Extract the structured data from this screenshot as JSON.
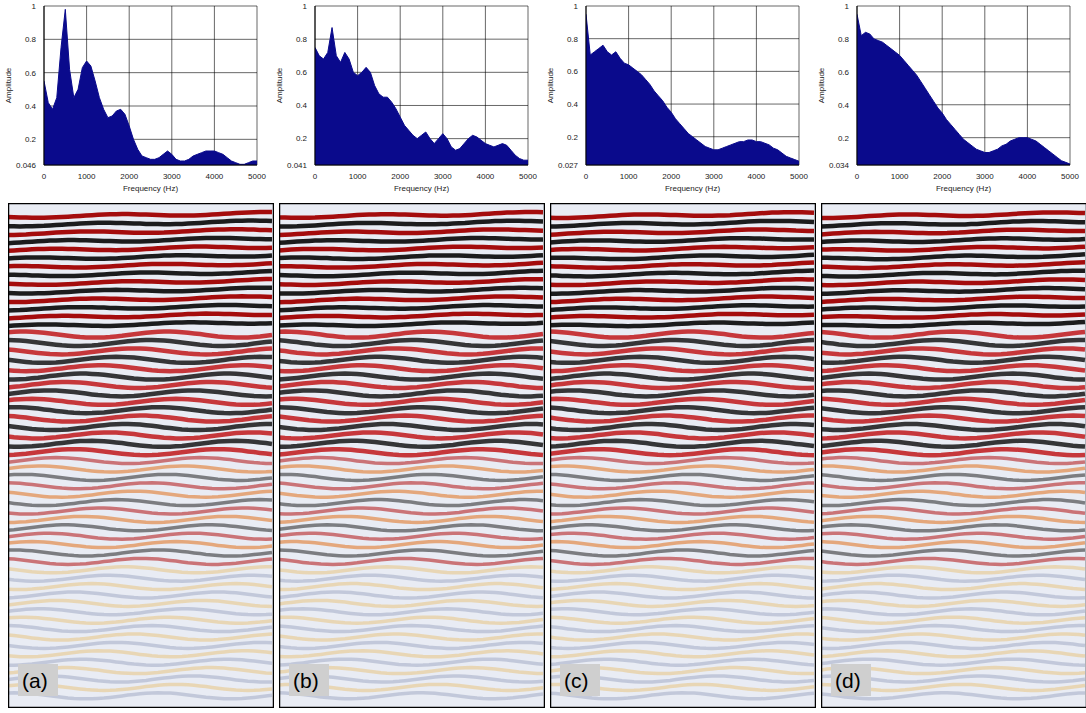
{
  "chart_data": [
    {
      "type": "area",
      "x_label": "Frequency (Hz)",
      "y_label": "Amplitude",
      "color": "#0a0a8c",
      "grid": true,
      "xlim": [
        0,
        5000
      ],
      "xticks": [
        0,
        1000,
        2000,
        3000,
        4000,
        5000
      ],
      "ylim": [
        0.046,
        1
      ],
      "yticks": [
        0.046,
        0.2,
        0.4,
        0.6,
        0.8,
        1
      ],
      "x": [
        0,
        100,
        200,
        300,
        400,
        500,
        600,
        700,
        800,
        900,
        1000,
        1100,
        1200,
        1300,
        1400,
        1500,
        1600,
        1700,
        1800,
        1900,
        2000,
        2100,
        2200,
        2300,
        2400,
        2500,
        2600,
        2700,
        2800,
        2900,
        3000,
        3100,
        3200,
        3300,
        3400,
        3500,
        3600,
        3700,
        3800,
        3900,
        4000,
        4100,
        4200,
        4300,
        4400,
        4500,
        4600,
        4700,
        4800,
        4900,
        5000
      ],
      "values": [
        0.55,
        0.42,
        0.38,
        0.45,
        0.75,
        0.98,
        0.62,
        0.45,
        0.5,
        0.63,
        0.67,
        0.64,
        0.55,
        0.45,
        0.38,
        0.33,
        0.34,
        0.37,
        0.38,
        0.35,
        0.28,
        0.2,
        0.14,
        0.1,
        0.09,
        0.08,
        0.08,
        0.09,
        0.11,
        0.13,
        0.11,
        0.08,
        0.07,
        0.07,
        0.08,
        0.1,
        0.11,
        0.12,
        0.13,
        0.13,
        0.13,
        0.12,
        0.11,
        0.09,
        0.07,
        0.06,
        0.05,
        0.05,
        0.06,
        0.07,
        0.07
      ]
    },
    {
      "type": "area",
      "x_label": "Frequency (Hz)",
      "y_label": "Amplitude",
      "color": "#0a0a8c",
      "grid": true,
      "xlim": [
        0,
        5000
      ],
      "xticks": [
        0,
        1000,
        2000,
        3000,
        4000,
        5000
      ],
      "ylim": [
        0.041,
        1
      ],
      "yticks": [
        0.041,
        0.2,
        0.4,
        0.6,
        0.8,
        1
      ],
      "x": [
        0,
        100,
        200,
        300,
        400,
        500,
        600,
        700,
        800,
        900,
        1000,
        1100,
        1200,
        1300,
        1400,
        1500,
        1600,
        1700,
        1800,
        1900,
        2000,
        2100,
        2200,
        2300,
        2400,
        2500,
        2600,
        2700,
        2800,
        2900,
        3000,
        3100,
        3200,
        3300,
        3400,
        3500,
        3600,
        3700,
        3800,
        3900,
        4000,
        4100,
        4200,
        4300,
        4400,
        4500,
        4600,
        4700,
        4800,
        4900,
        5000
      ],
      "values": [
        0.75,
        0.7,
        0.68,
        0.72,
        0.87,
        0.7,
        0.66,
        0.72,
        0.68,
        0.6,
        0.58,
        0.6,
        0.63,
        0.6,
        0.52,
        0.47,
        0.45,
        0.45,
        0.42,
        0.38,
        0.33,
        0.28,
        0.25,
        0.22,
        0.2,
        0.22,
        0.24,
        0.2,
        0.17,
        0.2,
        0.23,
        0.2,
        0.15,
        0.13,
        0.14,
        0.17,
        0.2,
        0.22,
        0.21,
        0.19,
        0.17,
        0.16,
        0.15,
        0.16,
        0.17,
        0.16,
        0.13,
        0.1,
        0.08,
        0.07,
        0.07
      ]
    },
    {
      "type": "area",
      "x_label": "Frequency (Hz)",
      "y_label": "Amplitude",
      "color": "#0a0a8c",
      "grid": true,
      "xlim": [
        0,
        5000
      ],
      "xticks": [
        0,
        1000,
        2000,
        3000,
        4000,
        5000
      ],
      "ylim": [
        0.027,
        1
      ],
      "yticks": [
        0.027,
        0.2,
        0.4,
        0.6,
        0.8,
        1
      ],
      "x": [
        0,
        100,
        200,
        300,
        400,
        500,
        600,
        700,
        800,
        900,
        1000,
        1100,
        1200,
        1300,
        1400,
        1500,
        1600,
        1700,
        1800,
        1900,
        2000,
        2100,
        2200,
        2300,
        2400,
        2500,
        2600,
        2700,
        2800,
        2900,
        3000,
        3100,
        3200,
        3300,
        3400,
        3500,
        3600,
        3700,
        3800,
        3900,
        4000,
        4100,
        4200,
        4300,
        4400,
        4500,
        4600,
        4700,
        4800,
        4900,
        5000
      ],
      "values": [
        0.95,
        0.7,
        0.72,
        0.74,
        0.76,
        0.72,
        0.7,
        0.72,
        0.68,
        0.65,
        0.64,
        0.62,
        0.6,
        0.58,
        0.55,
        0.52,
        0.48,
        0.45,
        0.42,
        0.38,
        0.35,
        0.31,
        0.28,
        0.25,
        0.22,
        0.2,
        0.18,
        0.16,
        0.14,
        0.13,
        0.12,
        0.12,
        0.13,
        0.14,
        0.15,
        0.16,
        0.17,
        0.17,
        0.18,
        0.18,
        0.17,
        0.17,
        0.16,
        0.15,
        0.13,
        0.12,
        0.1,
        0.08,
        0.07,
        0.06,
        0.05
      ]
    },
    {
      "type": "area",
      "x_label": "Frequency (Hz)",
      "y_label": "Amplitude",
      "color": "#0a0a8c",
      "grid": true,
      "xlim": [
        0,
        5000
      ],
      "xticks": [
        0,
        1000,
        2000,
        3000,
        4000,
        5000
      ],
      "ylim": [
        0.034,
        1
      ],
      "yticks": [
        0.034,
        0.2,
        0.4,
        0.6,
        0.8,
        1
      ],
      "x": [
        0,
        100,
        200,
        300,
        400,
        500,
        600,
        700,
        800,
        900,
        1000,
        1100,
        1200,
        1300,
        1400,
        1500,
        1600,
        1700,
        1800,
        1900,
        2000,
        2100,
        2200,
        2300,
        2400,
        2500,
        2600,
        2700,
        2800,
        2900,
        3000,
        3100,
        3200,
        3300,
        3400,
        3500,
        3600,
        3700,
        3800,
        3900,
        4000,
        4100,
        4200,
        4300,
        4400,
        4500,
        4600,
        4700,
        4800,
        4900,
        5000
      ],
      "values": [
        0.95,
        0.82,
        0.84,
        0.83,
        0.8,
        0.79,
        0.78,
        0.76,
        0.74,
        0.72,
        0.7,
        0.67,
        0.64,
        0.61,
        0.58,
        0.54,
        0.5,
        0.46,
        0.42,
        0.38,
        0.35,
        0.31,
        0.28,
        0.25,
        0.22,
        0.19,
        0.17,
        0.15,
        0.13,
        0.12,
        0.11,
        0.11,
        0.12,
        0.13,
        0.15,
        0.16,
        0.18,
        0.19,
        0.2,
        0.2,
        0.2,
        0.19,
        0.18,
        0.16,
        0.14,
        0.12,
        0.1,
        0.08,
        0.06,
        0.05,
        0.04
      ]
    }
  ],
  "panel_labels": [
    "(a)",
    "(b)",
    "(c)",
    "(d)"
  ]
}
